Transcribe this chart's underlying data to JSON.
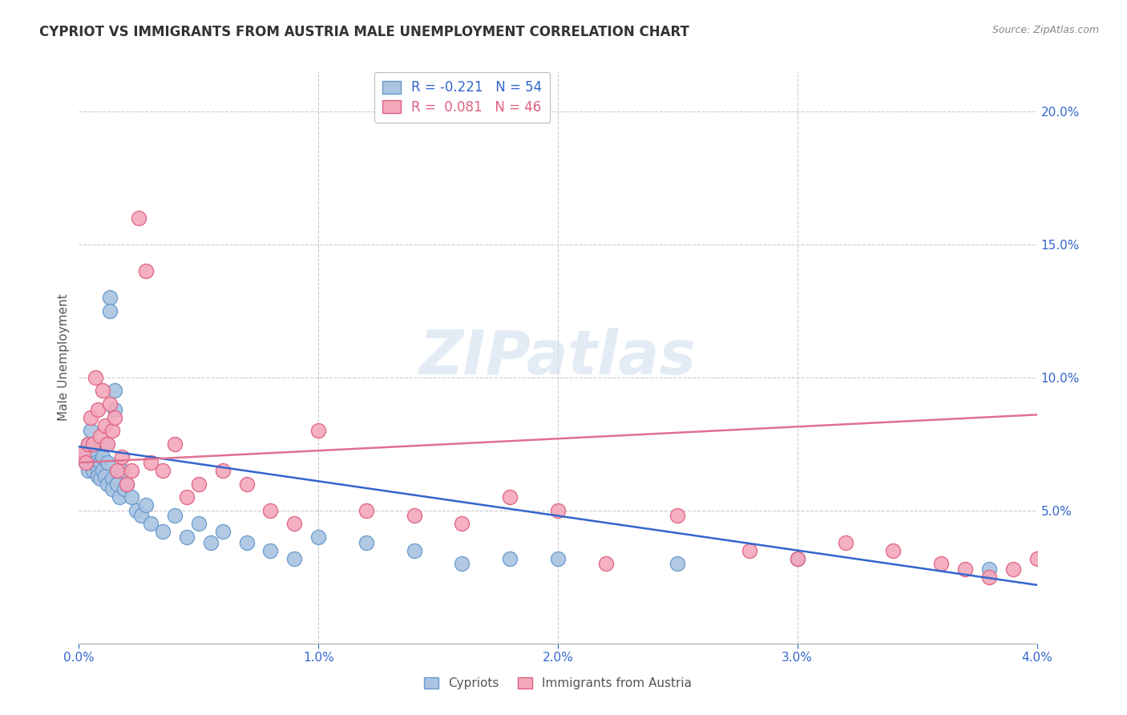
{
  "title": "CYPRIOT VS IMMIGRANTS FROM AUSTRIA MALE UNEMPLOYMENT CORRELATION CHART",
  "source": "Source: ZipAtlas.com",
  "ylabel": "Male Unemployment",
  "cypriot_color": "#aac4e2",
  "cypriot_edge": "#6699cc",
  "austria_color": "#f4a8bc",
  "austria_edge": "#e06080",
  "blue_line_color": "#3366cc",
  "pink_line_color": "#e07090",
  "watermark": "ZIPatlas",
  "background_color": "#ffffff",
  "grid_color": "#cccccc",
  "cypriot_x": [
    0.0002,
    0.0003,
    0.0004,
    0.0004,
    0.0005,
    0.0005,
    0.0006,
    0.0006,
    0.0007,
    0.0007,
    0.0008,
    0.0008,
    0.0009,
    0.0009,
    0.001,
    0.001,
    0.0011,
    0.0011,
    0.0012,
    0.0012,
    0.0013,
    0.0013,
    0.0014,
    0.0014,
    0.0015,
    0.0015,
    0.0016,
    0.0017,
    0.0018,
    0.0019,
    0.002,
    0.0022,
    0.0024,
    0.0026,
    0.0028,
    0.003,
    0.0035,
    0.004,
    0.0045,
    0.005,
    0.0055,
    0.006,
    0.007,
    0.008,
    0.009,
    0.01,
    0.012,
    0.014,
    0.016,
    0.018,
    0.02,
    0.025,
    0.03,
    0.038
  ],
  "cypriot_y": [
    0.072,
    0.068,
    0.075,
    0.065,
    0.08,
    0.073,
    0.07,
    0.065,
    0.072,
    0.068,
    0.065,
    0.063,
    0.068,
    0.062,
    0.07,
    0.065,
    0.075,
    0.063,
    0.06,
    0.068,
    0.13,
    0.125,
    0.062,
    0.058,
    0.095,
    0.088,
    0.06,
    0.055,
    0.065,
    0.058,
    0.06,
    0.055,
    0.05,
    0.048,
    0.052,
    0.045,
    0.042,
    0.048,
    0.04,
    0.045,
    0.038,
    0.042,
    0.038,
    0.035,
    0.032,
    0.04,
    0.038,
    0.035,
    0.03,
    0.032,
    0.032,
    0.03,
    0.032,
    0.028
  ],
  "austria_x": [
    0.0002,
    0.0003,
    0.0004,
    0.0005,
    0.0006,
    0.0007,
    0.0008,
    0.0009,
    0.001,
    0.0011,
    0.0012,
    0.0013,
    0.0014,
    0.0015,
    0.0016,
    0.0018,
    0.002,
    0.0022,
    0.0025,
    0.0028,
    0.003,
    0.0035,
    0.004,
    0.0045,
    0.005,
    0.006,
    0.007,
    0.008,
    0.009,
    0.01,
    0.012,
    0.014,
    0.016,
    0.018,
    0.02,
    0.022,
    0.025,
    0.028,
    0.03,
    0.032,
    0.034,
    0.036,
    0.037,
    0.038,
    0.039,
    0.04
  ],
  "austria_y": [
    0.072,
    0.068,
    0.075,
    0.085,
    0.075,
    0.1,
    0.088,
    0.078,
    0.095,
    0.082,
    0.075,
    0.09,
    0.08,
    0.085,
    0.065,
    0.07,
    0.06,
    0.065,
    0.16,
    0.14,
    0.068,
    0.065,
    0.075,
    0.055,
    0.06,
    0.065,
    0.06,
    0.05,
    0.045,
    0.08,
    0.05,
    0.048,
    0.045,
    0.055,
    0.05,
    0.03,
    0.048,
    0.035,
    0.032,
    0.038,
    0.035,
    0.03,
    0.028,
    0.025,
    0.028,
    0.032
  ],
  "cypriot_trend_x": [
    0.0,
    0.04
  ],
  "cypriot_trend_y": [
    0.074,
    0.022
  ],
  "austria_trend_x": [
    0.0,
    0.04
  ],
  "austria_trend_y": [
    0.068,
    0.086
  ],
  "xmin": 0.0,
  "xmax": 0.04,
  "ymin": 0.0,
  "ymax": 0.215
}
